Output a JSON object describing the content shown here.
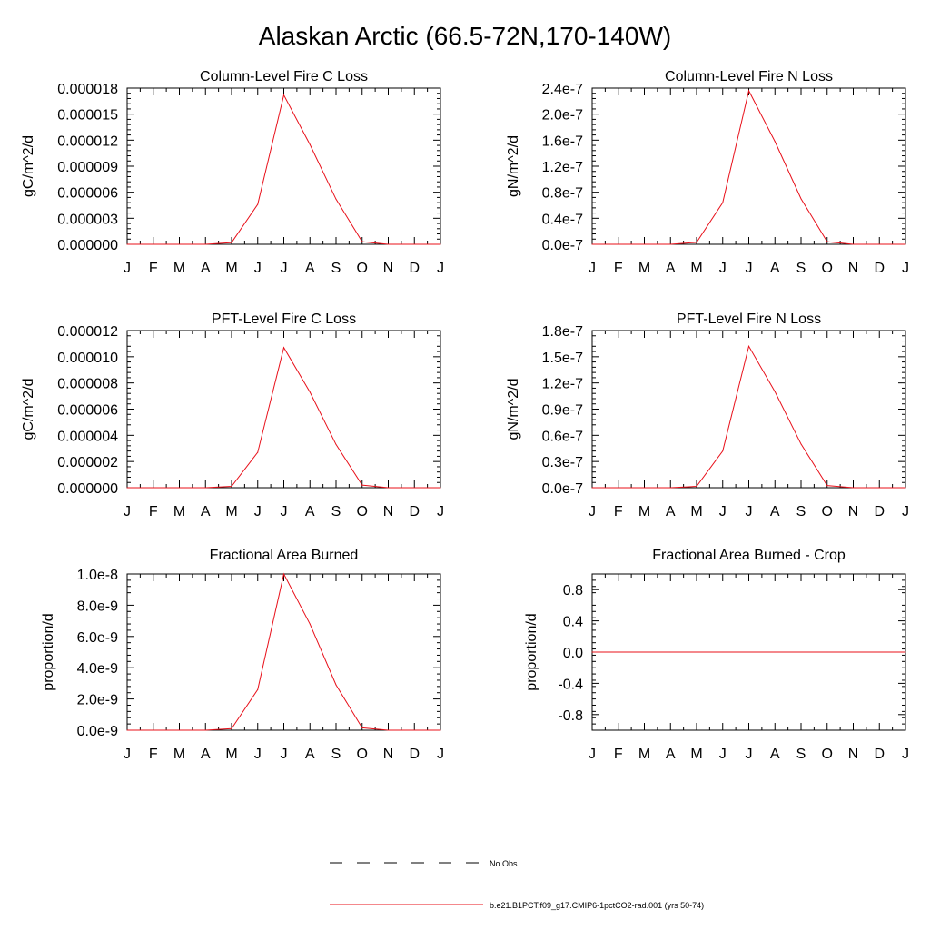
{
  "figure": {
    "title": "Alaskan Arctic (66.5-72N,170-140W)",
    "month_labels": [
      "J",
      "F",
      "M",
      "A",
      "M",
      "J",
      "J",
      "A",
      "S",
      "O",
      "N",
      "D",
      "J"
    ],
    "model_color": "#e8101a",
    "obs_color": "#000000"
  },
  "legend": [
    {
      "label": "No Obs",
      "style": "dashed",
      "color": "#000000"
    },
    {
      "label": "b.e21.B1PCT.f09_g17.CMIP6-1pctCO2-rad.001 (yrs 50-74)",
      "style": "solid",
      "color": "#e8101a"
    }
  ],
  "chart_data": [
    {
      "type": "line",
      "title": "Column-Level Fire C Loss",
      "ylabel": "gC/m^2/d",
      "x": [
        1,
        2,
        3,
        4,
        5,
        6,
        7,
        8,
        9,
        10,
        11,
        12,
        13
      ],
      "ylim": [
        0,
        1.8e-05
      ],
      "yticks": [
        0,
        3e-06,
        6e-06,
        9e-06,
        1.2e-05,
        1.5e-05,
        1.8e-05
      ],
      "yticklabels": [
        "0.000000",
        "0.000003",
        "0.000006",
        "0.000009",
        "0.000012",
        "0.000015",
        "0.000018"
      ],
      "series": [
        {
          "values": [
            0,
            0,
            0,
            0,
            2e-07,
            4.6e-06,
            1.72e-05,
            1.15e-05,
            5.2e-06,
            3e-07,
            0,
            0,
            0
          ]
        }
      ]
    },
    {
      "type": "line",
      "title": "Column-Level Fire N Loss",
      "ylabel": "gN/m^2/d",
      "x": [
        1,
        2,
        3,
        4,
        5,
        6,
        7,
        8,
        9,
        10,
        11,
        12,
        13
      ],
      "ylim": [
        0,
        2.4e-07
      ],
      "yticks": [
        0,
        4e-08,
        8e-08,
        1.2e-07,
        1.6e-07,
        2e-07,
        2.4e-07
      ],
      "yticklabels": [
        "0.0e-7",
        "0.4e-7",
        "0.8e-7",
        "1.2e-7",
        "1.6e-7",
        "2.0e-7",
        "2.4e-7"
      ],
      "series": [
        {
          "values": [
            0,
            0,
            0,
            0,
            3e-09,
            6.4e-08,
            2.36e-07,
            1.58e-07,
            7e-08,
            4e-09,
            0,
            0,
            0
          ]
        }
      ]
    },
    {
      "type": "line",
      "title": "PFT-Level Fire C Loss",
      "ylabel": "gC/m^2/d",
      "x": [
        1,
        2,
        3,
        4,
        5,
        6,
        7,
        8,
        9,
        10,
        11,
        12,
        13
      ],
      "ylim": [
        0,
        1.2e-05
      ],
      "yticks": [
        0,
        2e-06,
        4e-06,
        6e-06,
        8e-06,
        1e-05,
        1.2e-05
      ],
      "yticklabels": [
        "0.000000",
        "0.000002",
        "0.000004",
        "0.000006",
        "0.000008",
        "0.000010",
        "0.000012"
      ],
      "series": [
        {
          "values": [
            0,
            0,
            0,
            0,
            1e-07,
            2.7e-06,
            1.07e-05,
            7.3e-06,
            3.3e-06,
            2e-07,
            0,
            0,
            0
          ]
        }
      ]
    },
    {
      "type": "line",
      "title": "PFT-Level Fire N Loss",
      "ylabel": "gN/m^2/d",
      "x": [
        1,
        2,
        3,
        4,
        5,
        6,
        7,
        8,
        9,
        10,
        11,
        12,
        13
      ],
      "ylim": [
        0,
        1.8e-07
      ],
      "yticks": [
        0,
        3e-08,
        6e-08,
        9e-08,
        1.2e-07,
        1.5e-07,
        1.8e-07
      ],
      "yticklabels": [
        "0.0e-7",
        "0.3e-7",
        "0.6e-7",
        "0.9e-7",
        "1.2e-7",
        "1.5e-7",
        "1.8e-7"
      ],
      "series": [
        {
          "values": [
            0,
            0,
            0,
            0,
            1.5e-09,
            4.2e-08,
            1.62e-07,
            1.1e-07,
            5e-08,
            2.5e-09,
            0,
            0,
            0
          ]
        }
      ]
    },
    {
      "type": "line",
      "title": "Fractional Area Burned",
      "ylabel": "proportion/d",
      "x": [
        1,
        2,
        3,
        4,
        5,
        6,
        7,
        8,
        9,
        10,
        11,
        12,
        13
      ],
      "ylim": [
        0,
        1e-08
      ],
      "yticks": [
        0,
        2e-09,
        4e-09,
        6e-09,
        8e-09,
        1e-08
      ],
      "yticklabels": [
        "0.0e-9",
        "2.0e-9",
        "4.0e-9",
        "6.0e-9",
        "8.0e-9",
        "1.0e-8"
      ],
      "series": [
        {
          "values": [
            0,
            0,
            0,
            0,
            1e-10,
            2.6e-09,
            1e-08,
            6.8e-09,
            2.9e-09,
            1.5e-10,
            0,
            0,
            0
          ]
        }
      ]
    },
    {
      "type": "line",
      "title": "Fractional Area Burned - Crop",
      "ylabel": "proportion/d",
      "x": [
        1,
        2,
        3,
        4,
        5,
        6,
        7,
        8,
        9,
        10,
        11,
        12,
        13
      ],
      "ylim": [
        -1.0,
        1.0
      ],
      "yticks": [
        -0.8,
        -0.4,
        0.0,
        0.4,
        0.8
      ],
      "yticklabels": [
        "-0.8",
        "-0.4",
        "0.0",
        "0.4",
        "0.8"
      ],
      "series": [
        {
          "values": [
            0,
            0,
            0,
            0,
            0,
            0,
            0,
            0,
            0,
            0,
            0,
            0,
            0
          ]
        }
      ]
    }
  ]
}
